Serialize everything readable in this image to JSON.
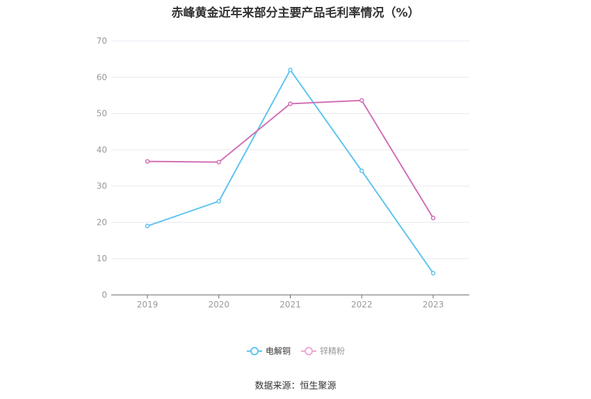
{
  "chart_data": {
    "type": "line",
    "title": "赤峰黄金近年来部分主要产品毛利率情况（%）",
    "categories": [
      "2019",
      "2020",
      "2021",
      "2022",
      "2023"
    ],
    "yticks": [
      "0",
      "10",
      "20",
      "30",
      "40",
      "50",
      "60",
      "70"
    ],
    "ylim": [
      0,
      70
    ],
    "grid": true,
    "legend_position": "bottom",
    "series": [
      {
        "name": "电解铜",
        "color": "#5ec4ef",
        "values": [
          19.0,
          25.8,
          62.0,
          34.2,
          6.0
        ]
      },
      {
        "name": "锌精粉",
        "color": "#d16fb5",
        "values": [
          36.8,
          36.6,
          52.7,
          53.6,
          21.2
        ]
      }
    ]
  },
  "legend": {
    "items": [
      {
        "label": "电解铜",
        "color": "#5ec4ef",
        "text_color": "#333333"
      },
      {
        "label": "锌精粉",
        "color": "#f0a6d6",
        "text_color": "#999999"
      }
    ]
  },
  "source": {
    "text": "数据来源：恒生聚源"
  }
}
